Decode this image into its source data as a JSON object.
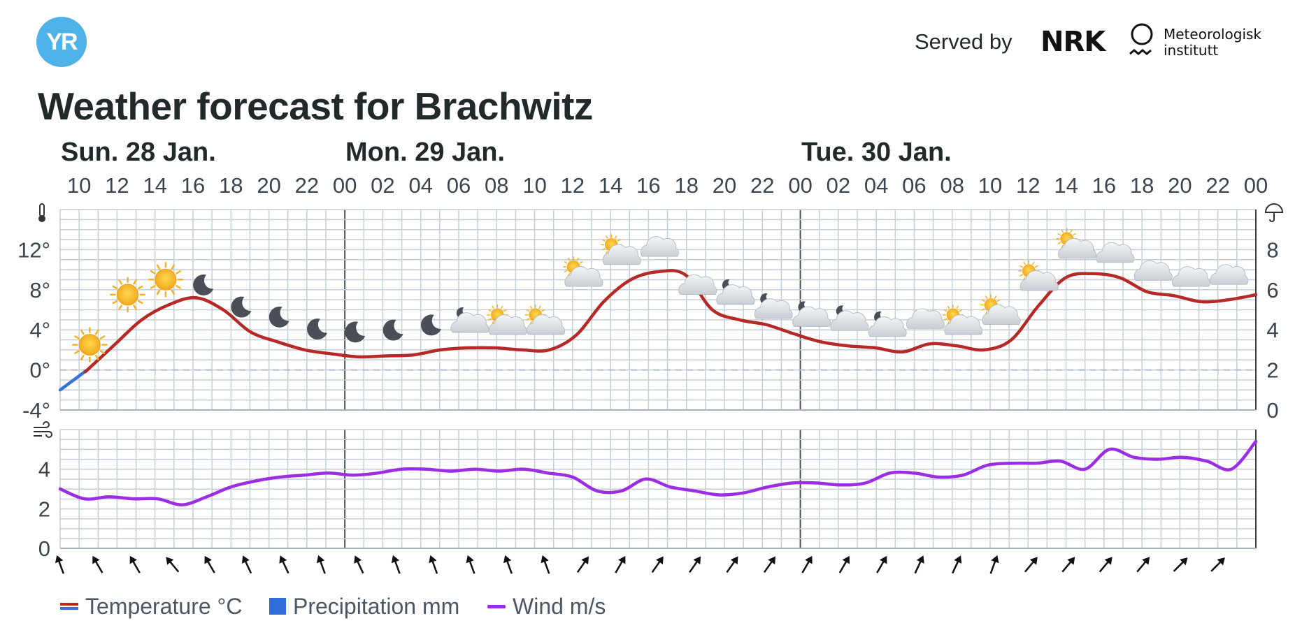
{
  "header": {
    "served_by": "Served by",
    "nrk": "NRK",
    "met_line1": "Meteorologisk",
    "met_line2": "institutt",
    "title": "Weather forecast for Brachwitz"
  },
  "days": [
    "Sun. 28 Jan.",
    "Mon. 29 Jan.",
    "Tue. 30 Jan."
  ],
  "legend": {
    "temperature": "Temperature °C",
    "precipitation": "Precipitation mm",
    "wind": "Wind m/s"
  },
  "colors": {
    "temp_warm": "#b52a26",
    "temp_cold": "#3573d9",
    "precip": "#2f6bdb",
    "wind": "#9b2ee3",
    "grid": "#c6ced6",
    "logo": "#4fb2e8"
  },
  "chart_data": {
    "type": "line",
    "x_hour_labels": [
      "10",
      "12",
      "14",
      "16",
      "18",
      "20",
      "22",
      "00",
      "02",
      "04",
      "06",
      "08",
      "10",
      "12",
      "14",
      "16",
      "18",
      "20",
      "22",
      "00",
      "02",
      "04",
      "06",
      "08",
      "10",
      "12",
      "14",
      "16",
      "18",
      "20",
      "22",
      "00"
    ],
    "x_hours": [
      9,
      10,
      11,
      12,
      13,
      14,
      15,
      16,
      17,
      18,
      19,
      20,
      21,
      22,
      23,
      24,
      25,
      26,
      27,
      28,
      29,
      30,
      31,
      32,
      33,
      34,
      35,
      36,
      37,
      38,
      39,
      40,
      41,
      42,
      43,
      44,
      45,
      46,
      47,
      48,
      49,
      50,
      51,
      52,
      53,
      54,
      55,
      56,
      57,
      58,
      59,
      60,
      61,
      62,
      63,
      64,
      65,
      66,
      67,
      68,
      69,
      70,
      71,
      72
    ],
    "temperature": {
      "axis_ticks": [
        "12°",
        "8°",
        "4°",
        "0°",
        "-4°"
      ],
      "ylim": [
        -4,
        16
      ],
      "values": [
        -2,
        0,
        2.5,
        5,
        6.5,
        7.2,
        6,
        3.8,
        2.8,
        2,
        1.6,
        1.3,
        1.4,
        1.5,
        2,
        2.2,
        2.2,
        2,
        2,
        3.5,
        6.8,
        9,
        9.8,
        9.5,
        6,
        5,
        4.5,
        3.6,
        2.8,
        2.4,
        2.2,
        1.8,
        2.6,
        2.4,
        2,
        3,
        6.4,
        9.2,
        9.6,
        9.2,
        7.8,
        7.4,
        6.8,
        7,
        7.5
      ]
    },
    "precipitation": {
      "axis_ticks": [
        "8",
        "6",
        "4",
        "2",
        "0"
      ],
      "ylim": [
        0,
        10
      ],
      "values": []
    },
    "wind": {
      "axis_ticks": [
        "4",
        "2",
        "0"
      ],
      "ylim": [
        0,
        6
      ],
      "values": [
        3,
        2.5,
        2.6,
        2.5,
        2.5,
        2.2,
        2.6,
        3.1,
        3.4,
        3.6,
        3.7,
        3.8,
        3.7,
        3.8,
        4,
        4,
        3.9,
        4,
        3.9,
        4,
        3.8,
        3.6,
        2.9,
        2.9,
        3.5,
        3.1,
        2.9,
        2.7,
        2.8,
        3.1,
        3.3,
        3.3,
        3.2,
        3.3,
        3.8,
        3.8,
        3.6,
        3.7,
        4.2,
        4.3,
        4.3,
        4.4,
        4,
        5,
        4.6,
        4.5,
        4.6,
        4.4,
        4,
        5.4
      ],
      "direction_rotations": [
        -20,
        -30,
        -30,
        -40,
        -30,
        -25,
        -25,
        -20,
        -25,
        -20,
        -20,
        -20,
        -20,
        -20,
        35,
        30,
        35,
        35,
        35,
        35,
        30,
        30,
        30,
        25,
        25,
        20,
        40,
        40,
        40,
        40,
        45,
        45
      ]
    },
    "weather_icons": [
      "sun",
      "sun",
      "sun",
      "moon",
      "moon",
      "moon",
      "moon",
      "moon",
      "moon",
      "moon",
      "moon-cloud",
      "sun-cloud",
      "sun-cloud",
      "sun-cloud",
      "sun-cloud",
      "cloud",
      "cloud",
      "moon-cloud",
      "moon-cloud",
      "moon-cloud",
      "moon-cloud",
      "moon-cloud",
      "cloud",
      "sun-cloud",
      "sun-cloud",
      "sun-cloud",
      "sun-cloud",
      "cloud",
      "cloud",
      "cloud",
      "cloud"
    ]
  }
}
